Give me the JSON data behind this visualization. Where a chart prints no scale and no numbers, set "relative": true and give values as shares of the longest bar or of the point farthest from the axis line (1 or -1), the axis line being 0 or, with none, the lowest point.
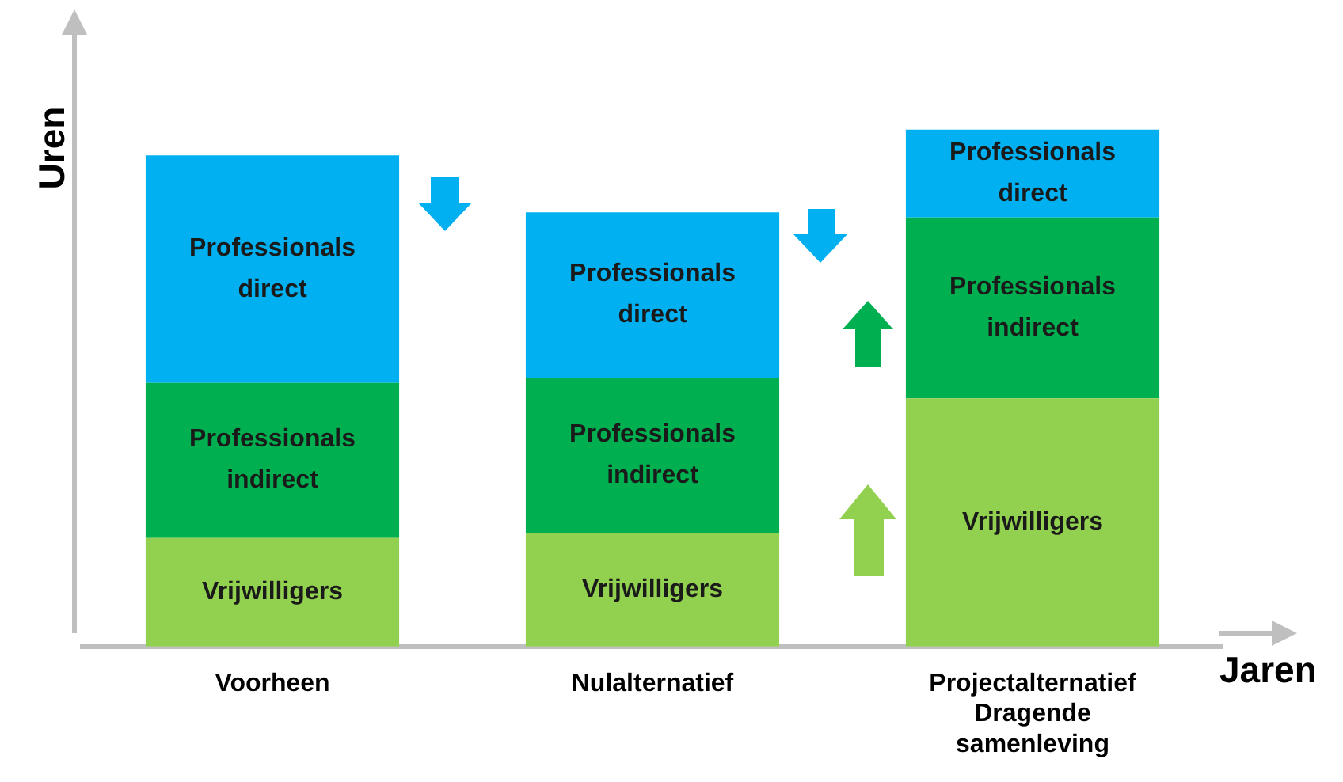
{
  "chart_data": {
    "type": "bar",
    "stacked": true,
    "relative": true,
    "xlabel": "Jaren",
    "ylabel": "Uren",
    "categories": [
      "Voorheen",
      "Nulalternatief",
      "Projectalternatief Dragende samenleving"
    ],
    "series": [
      {
        "name": "Vrijwilligers",
        "color": "#92d050",
        "values": [
          0.21,
          0.22,
          0.48
        ]
      },
      {
        "name": "Professionals indirect",
        "color": "#00b050",
        "values": [
          0.3,
          0.3,
          0.35
        ]
      },
      {
        "name": "Professionals direct",
        "color": "#00b0f0",
        "values": [
          0.44,
          0.32,
          0.17
        ]
      }
    ],
    "legend": false,
    "grid": false
  }
}
